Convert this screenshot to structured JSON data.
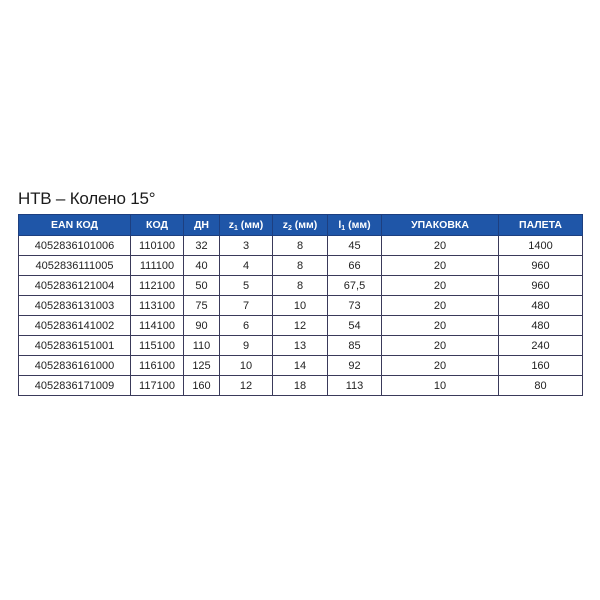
{
  "title": "НТВ – Колено 15°",
  "table": {
    "headers": [
      "EAN КОД",
      "КОД",
      "ДН",
      {
        "main": "z",
        "sub": "1",
        "rest": " (мм)"
      },
      {
        "main": "z",
        "sub": "2",
        "rest": " (мм)"
      },
      {
        "main": "l",
        "sub": "1",
        "rest": " (мм)"
      },
      "УПАКОВКА",
      "ПАЛЕТА"
    ],
    "rows": [
      [
        "4052836101006",
        "110100",
        "32",
        "3",
        "8",
        "45",
        "20",
        "1400"
      ],
      [
        "4052836111005",
        "111100",
        "40",
        "4",
        "8",
        "66",
        "20",
        "960"
      ],
      [
        "4052836121004",
        "112100",
        "50",
        "5",
        "8",
        "67,5",
        "20",
        "960"
      ],
      [
        "4052836131003",
        "113100",
        "75",
        "7",
        "10",
        "73",
        "20",
        "480"
      ],
      [
        "4052836141002",
        "114100",
        "90",
        "6",
        "12",
        "54",
        "20",
        "480"
      ],
      [
        "4052836151001",
        "115100",
        "110",
        "9",
        "13",
        "85",
        "20",
        "240"
      ],
      [
        "4052836161000",
        "116100",
        "125",
        "10",
        "14",
        "92",
        "20",
        "160"
      ],
      [
        "4052836171009",
        "117100",
        "160",
        "12",
        "18",
        "113",
        "10",
        "80"
      ]
    ]
  }
}
